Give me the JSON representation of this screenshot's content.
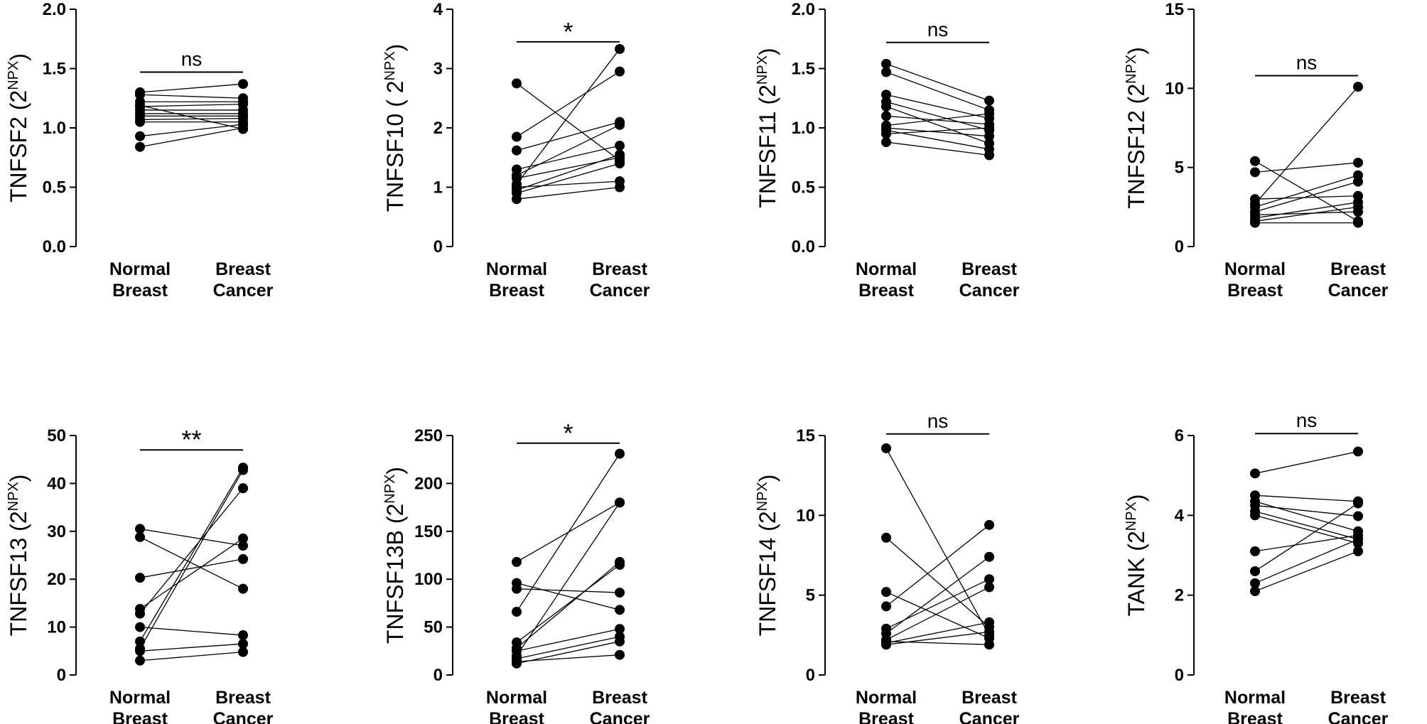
{
  "chart_data": [
    {
      "type": "scatter",
      "panel": "TNFSF2",
      "ylabel_base": "TNFSF2 (2",
      "ylabel_sup": "NPX",
      "ylabel_end": ")",
      "yticks": [
        "0.0",
        "0.5",
        "1.0",
        "1.5",
        "2.0"
      ],
      "ylim": [
        0,
        2
      ],
      "categories": [
        [
          "Normal",
          "Breast"
        ],
        [
          "Breast",
          "Cancer"
        ]
      ],
      "significance": "ns",
      "bracket_y": 1.47,
      "pairs": [
        [
          1.3,
          1.37
        ],
        [
          1.28,
          1.25
        ],
        [
          1.22,
          1.22
        ],
        [
          1.18,
          1.2
        ],
        [
          1.15,
          1.15
        ],
        [
          1.12,
          1.12
        ],
        [
          1.1,
          1.1
        ],
        [
          1.07,
          1.08
        ],
        [
          1.05,
          1.05
        ],
        [
          0.93,
          1.03
        ],
        [
          0.84,
          1.0
        ],
        [
          1.19,
          0.99
        ]
      ]
    },
    {
      "type": "scatter",
      "panel": "TNFSF10",
      "ylabel_base": "TNFSF10 ( 2",
      "ylabel_sup": "NPX",
      "ylabel_end": ")",
      "yticks": [
        "0",
        "1",
        "2",
        "3",
        "4"
      ],
      "ylim": [
        0,
        4
      ],
      "categories": [
        [
          "Normal",
          "Breast"
        ],
        [
          "Breast",
          "Cancer"
        ]
      ],
      "significance": "*",
      "bracket_y": 3.45,
      "pairs": [
        [
          2.75,
          1.45
        ],
        [
          1.85,
          2.95
        ],
        [
          1.62,
          2.1
        ],
        [
          1.3,
          1.7
        ],
        [
          1.2,
          2.05
        ],
        [
          1.15,
          1.5
        ],
        [
          1.05,
          3.33
        ],
        [
          1.0,
          1.1
        ],
        [
          0.95,
          1.55
        ],
        [
          0.9,
          1.4
        ],
        [
          0.8,
          1.0
        ]
      ]
    },
    {
      "type": "scatter",
      "panel": "TNFSF11",
      "ylabel_base": "TNFSF11 (2",
      "ylabel_sup": "NPX",
      "ylabel_end": ")",
      "yticks": [
        "0.0",
        "0.5",
        "1.0",
        "1.5",
        "2.0"
      ],
      "ylim": [
        0,
        2
      ],
      "categories": [
        [
          "Normal",
          "Breast"
        ],
        [
          "Breast",
          "Cancer"
        ]
      ],
      "significance": "ns",
      "bracket_y": 1.72,
      "pairs": [
        [
          1.54,
          1.23
        ],
        [
          1.47,
          1.15
        ],
        [
          1.28,
          1.08
        ],
        [
          1.22,
          0.98
        ],
        [
          1.18,
          0.87
        ],
        [
          1.1,
          1.03
        ],
        [
          1.02,
          1.12
        ],
        [
          1.0,
          0.93
        ],
        [
          0.98,
          0.82
        ],
        [
          0.95,
          1.0
        ],
        [
          0.88,
          0.77
        ]
      ]
    },
    {
      "type": "scatter",
      "panel": "TNFSF12",
      "ylabel_base": "TNFSF12 (2",
      "ylabel_sup": "NPX",
      "ylabel_end": ")",
      "yticks": [
        "0",
        "5",
        "10",
        "15"
      ],
      "ylim": [
        0,
        15
      ],
      "categories": [
        [
          "Normal",
          "Breast"
        ],
        [
          "Breast",
          "Cancer"
        ]
      ],
      "significance": "ns",
      "bracket_y": 10.8,
      "pairs": [
        [
          5.4,
          1.6
        ],
        [
          4.7,
          5.3
        ],
        [
          3.0,
          3.2
        ],
        [
          2.7,
          10.1
        ],
        [
          2.5,
          4.5
        ],
        [
          2.2,
          4.1
        ],
        [
          2.0,
          2.2
        ],
        [
          1.8,
          2.8
        ],
        [
          1.6,
          2.5
        ],
        [
          1.5,
          1.5
        ]
      ]
    },
    {
      "type": "scatter",
      "panel": "TNFSF13",
      "ylabel_base": "TNFSF13 (2",
      "ylabel_sup": "NPX",
      "ylabel_end": ")",
      "yticks": [
        "0",
        "10",
        "20",
        "30",
        "40",
        "50"
      ],
      "ylim": [
        0,
        50
      ],
      "categories": [
        [
          "Normal",
          "Breast"
        ],
        [
          "Breast",
          "Cancer"
        ]
      ],
      "significance": "**",
      "bracket_y": 47,
      "pairs": [
        [
          30.5,
          27.0
        ],
        [
          28.8,
          18.0
        ],
        [
          20.3,
          24.2
        ],
        [
          13.8,
          28.5
        ],
        [
          12.8,
          39.0
        ],
        [
          10.0,
          8.3
        ],
        [
          7.0,
          43.3
        ],
        [
          5.5,
          42.8
        ],
        [
          5.0,
          6.5
        ],
        [
          3.0,
          4.8
        ]
      ]
    },
    {
      "type": "scatter",
      "panel": "TNFSF13B",
      "ylabel_base": "TNFSF13B (2",
      "ylabel_sup": "NPX",
      "ylabel_end": ")",
      "yticks": [
        "0",
        "50",
        "100",
        "150",
        "200",
        "250"
      ],
      "ylim": [
        0,
        250
      ],
      "categories": [
        [
          "Normal",
          "Breast"
        ],
        [
          "Breast",
          "Cancer"
        ]
      ],
      "significance": "*",
      "bracket_y": 242,
      "pairs": [
        [
          118,
          180
        ],
        [
          96,
          68
        ],
        [
          90,
          86
        ],
        [
          66,
          231
        ],
        [
          34,
          115
        ],
        [
          28,
          118
        ],
        [
          25,
          48
        ],
        [
          20,
          180
        ],
        [
          17,
          40
        ],
        [
          14,
          21
        ],
        [
          12,
          35
        ]
      ]
    },
    {
      "type": "scatter",
      "panel": "TNFSF14",
      "ylabel_base": "TNFSF14 (2",
      "ylabel_sup": "NPX",
      "ylabel_end": ")",
      "yticks": [
        "0",
        "5",
        "10",
        "15"
      ],
      "ylim": [
        0,
        15
      ],
      "categories": [
        [
          "Normal",
          "Breast"
        ],
        [
          "Breast",
          "Cancer"
        ]
      ],
      "significance": "ns",
      "bracket_y": 15.1,
      "pairs": [
        [
          14.2,
          2.5
        ],
        [
          8.6,
          3.0
        ],
        [
          5.2,
          2.3
        ],
        [
          4.3,
          9.4
        ],
        [
          2.9,
          6.0
        ],
        [
          2.6,
          7.4
        ],
        [
          2.2,
          5.5
        ],
        [
          2.0,
          3.3
        ],
        [
          1.9,
          2.7
        ],
        [
          2.1,
          1.9
        ]
      ]
    },
    {
      "type": "scatter",
      "panel": "TANK",
      "ylabel_base": "TANK (2",
      "ylabel_sup": "NPX",
      "ylabel_end": ")",
      "yticks": [
        "0",
        "2",
        "4",
        "6"
      ],
      "ylim": [
        0,
        6
      ],
      "categories": [
        [
          "Normal",
          "Breast"
        ],
        [
          "Breast",
          "Cancer"
        ]
      ],
      "significance": "ns",
      "bracket_y": 6.05,
      "pairs": [
        [
          5.05,
          5.6
        ],
        [
          4.5,
          4.35
        ],
        [
          4.35,
          3.6
        ],
        [
          4.25,
          3.98
        ],
        [
          4.1,
          3.4
        ],
        [
          4.0,
          3.3
        ],
        [
          3.1,
          3.5
        ],
        [
          2.6,
          4.3
        ],
        [
          2.3,
          3.4
        ],
        [
          2.1,
          3.1
        ]
      ]
    }
  ]
}
